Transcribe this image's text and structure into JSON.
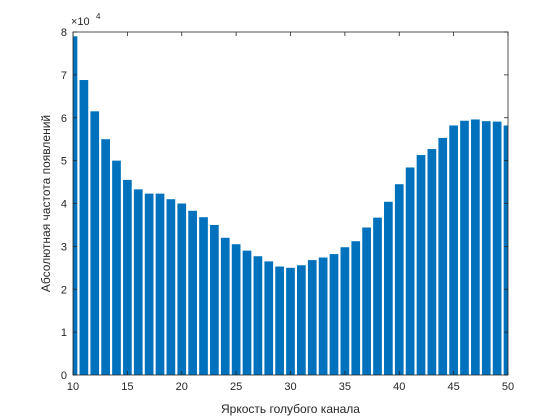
{
  "chart_data": {
    "type": "bar",
    "xlabel": "Яркость голубого канала",
    "ylabel": "Абсолютная частота появлений",
    "xlim": [
      10,
      50
    ],
    "ylim": [
      0,
      80000
    ],
    "y_exponent_label": "×10",
    "y_exponent_power": "4",
    "bar_color": "#0072BD",
    "x_ticks": [
      10,
      15,
      20,
      25,
      30,
      35,
      40,
      45,
      50
    ],
    "y_ticks": [
      0,
      10000,
      20000,
      30000,
      40000,
      50000,
      60000,
      70000,
      80000
    ],
    "x_tick_labels": [
      "10",
      "15",
      "20",
      "25",
      "30",
      "35",
      "40",
      "45",
      "50"
    ],
    "y_tick_labels": [
      "0",
      "1",
      "2",
      "3",
      "4",
      "5",
      "6",
      "7",
      "8"
    ],
    "x": [
      10,
      11,
      12,
      13,
      14,
      15,
      16,
      17,
      18,
      19,
      20,
      21,
      22,
      23,
      24,
      25,
      26,
      27,
      28,
      29,
      30,
      31,
      32,
      33,
      34,
      35,
      36,
      37,
      38,
      39,
      40,
      41,
      42,
      43,
      44,
      45,
      46,
      47,
      48,
      49,
      50
    ],
    "values": [
      79000,
      68800,
      61500,
      55000,
      50000,
      45500,
      43300,
      42300,
      42300,
      41000,
      40000,
      38300,
      36800,
      35000,
      32000,
      30500,
      29000,
      27700,
      26500,
      25300,
      25000,
      25600,
      26800,
      27400,
      28200,
      29800,
      31200,
      34400,
      36700,
      40400,
      44500,
      48400,
      51300,
      52700,
      55300,
      58200,
      59300,
      59600,
      59200,
      59100,
      58200
    ]
  }
}
